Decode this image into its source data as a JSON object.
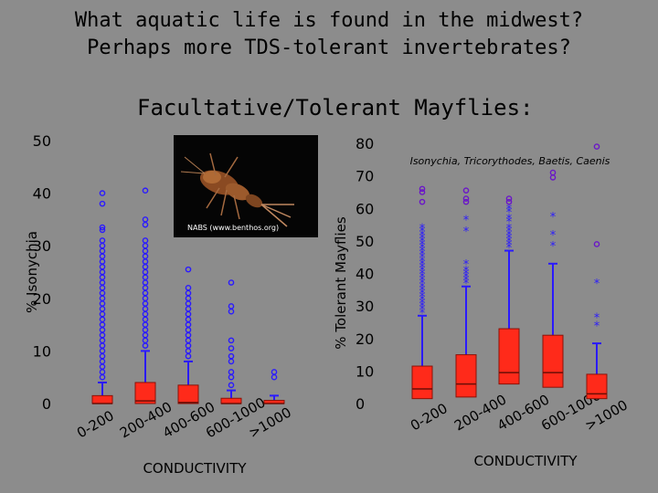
{
  "title_lines": [
    "What aquatic life is found in the midwest?",
    "Perhaps more TDS-tolerant invertebrates?"
  ],
  "subtitle": "Facultative/Tolerant Mayflies:",
  "image_credit": "NABS (www.benthos.org)",
  "chart_data": [
    {
      "type": "box",
      "ylabel": "% Isonychia",
      "xlabel": "CONDUCTIVITY",
      "ylim": [
        0,
        50
      ],
      "yticks": [
        0,
        10,
        20,
        30,
        40,
        50
      ],
      "categories": [
        "0-200",
        "200-400",
        "400-600",
        "600-1000",
        ">1000"
      ],
      "boxes": [
        {
          "min": 0,
          "q1": 0,
          "median": 0,
          "q3": 1.5,
          "max": 4
        },
        {
          "min": 0,
          "q1": 0,
          "median": 0.5,
          "q3": 4,
          "max": 10
        },
        {
          "min": 0,
          "q1": 0,
          "median": 0.2,
          "q3": 3.5,
          "max": 8
        },
        {
          "min": 0,
          "q1": 0,
          "median": 0,
          "q3": 1,
          "max": 2.5
        },
        {
          "min": 0,
          "q1": 0,
          "median": 0,
          "q3": 0.6,
          "max": 1.5
        }
      ],
      "outliers": [
        [
          5,
          6,
          7,
          8,
          9,
          10,
          11,
          12,
          13,
          14,
          15,
          16,
          17,
          18,
          19,
          20,
          21,
          22,
          23,
          24,
          25,
          26,
          27,
          28,
          29,
          30,
          31,
          33,
          33.5,
          38,
          40
        ],
        [
          11,
          12,
          13,
          14,
          15,
          16,
          17,
          18,
          19,
          20,
          21,
          22,
          23,
          24,
          25,
          26,
          27,
          28,
          29,
          30,
          31,
          34,
          35,
          40.5
        ],
        [
          9,
          10,
          11,
          12,
          13,
          14,
          15,
          16,
          17,
          18,
          19,
          20,
          21,
          22,
          25.5
        ],
        [
          3.5,
          5,
          6,
          8,
          9,
          10.5,
          12,
          17.5,
          18.5,
          23
        ],
        [
          5,
          6
        ]
      ],
      "box_color": "#ff2a1a",
      "outlier_color": "#2a1aff"
    },
    {
      "type": "box",
      "ylabel": "% Tolerant Mayflies",
      "xlabel": "CONDUCTIVITY",
      "series_label": "Isonychia, Tricorythodes, Baetis, Caenis",
      "ylim": [
        0,
        80
      ],
      "yticks": [
        0,
        10,
        20,
        30,
        40,
        50,
        60,
        70,
        80
      ],
      "categories": [
        "0-200",
        "200-400",
        "400-600",
        "600-1000",
        ">1000"
      ],
      "boxes": [
        {
          "min": 0,
          "q1": 1.5,
          "median": 4.5,
          "q3": 11.5,
          "max": 27
        },
        {
          "min": 0,
          "q1": 2,
          "median": 6,
          "q3": 15,
          "max": 36
        },
        {
          "min": 0,
          "q1": 6,
          "median": 9.5,
          "q3": 23,
          "max": 47
        },
        {
          "min": 0,
          "q1": 5,
          "median": 9.5,
          "q3": 21,
          "max": 43
        },
        {
          "min": 0,
          "q1": 1.5,
          "median": 3,
          "q3": 9,
          "max": 18.5
        }
      ],
      "outliers": [
        [
          28,
          29,
          30,
          31,
          32,
          33,
          34,
          35,
          36,
          37,
          38,
          39,
          40,
          41,
          42,
          43,
          44,
          45,
          46,
          47,
          48,
          49,
          50,
          51,
          52,
          53,
          54,
          62,
          65,
          66
        ],
        [
          37,
          38,
          39,
          40,
          41,
          43,
          53,
          56.5,
          62,
          63,
          65.5
        ],
        [
          48,
          49,
          50,
          51,
          52,
          53,
          54,
          56,
          57,
          59,
          60,
          62,
          63
        ],
        [
          48.5,
          52,
          57.5,
          69.5,
          71
        ],
        [
          24,
          26.5,
          37,
          49,
          79
        ]
      ],
      "box_color": "#ff2a1a",
      "outlier_color": "#2a1aff"
    }
  ]
}
